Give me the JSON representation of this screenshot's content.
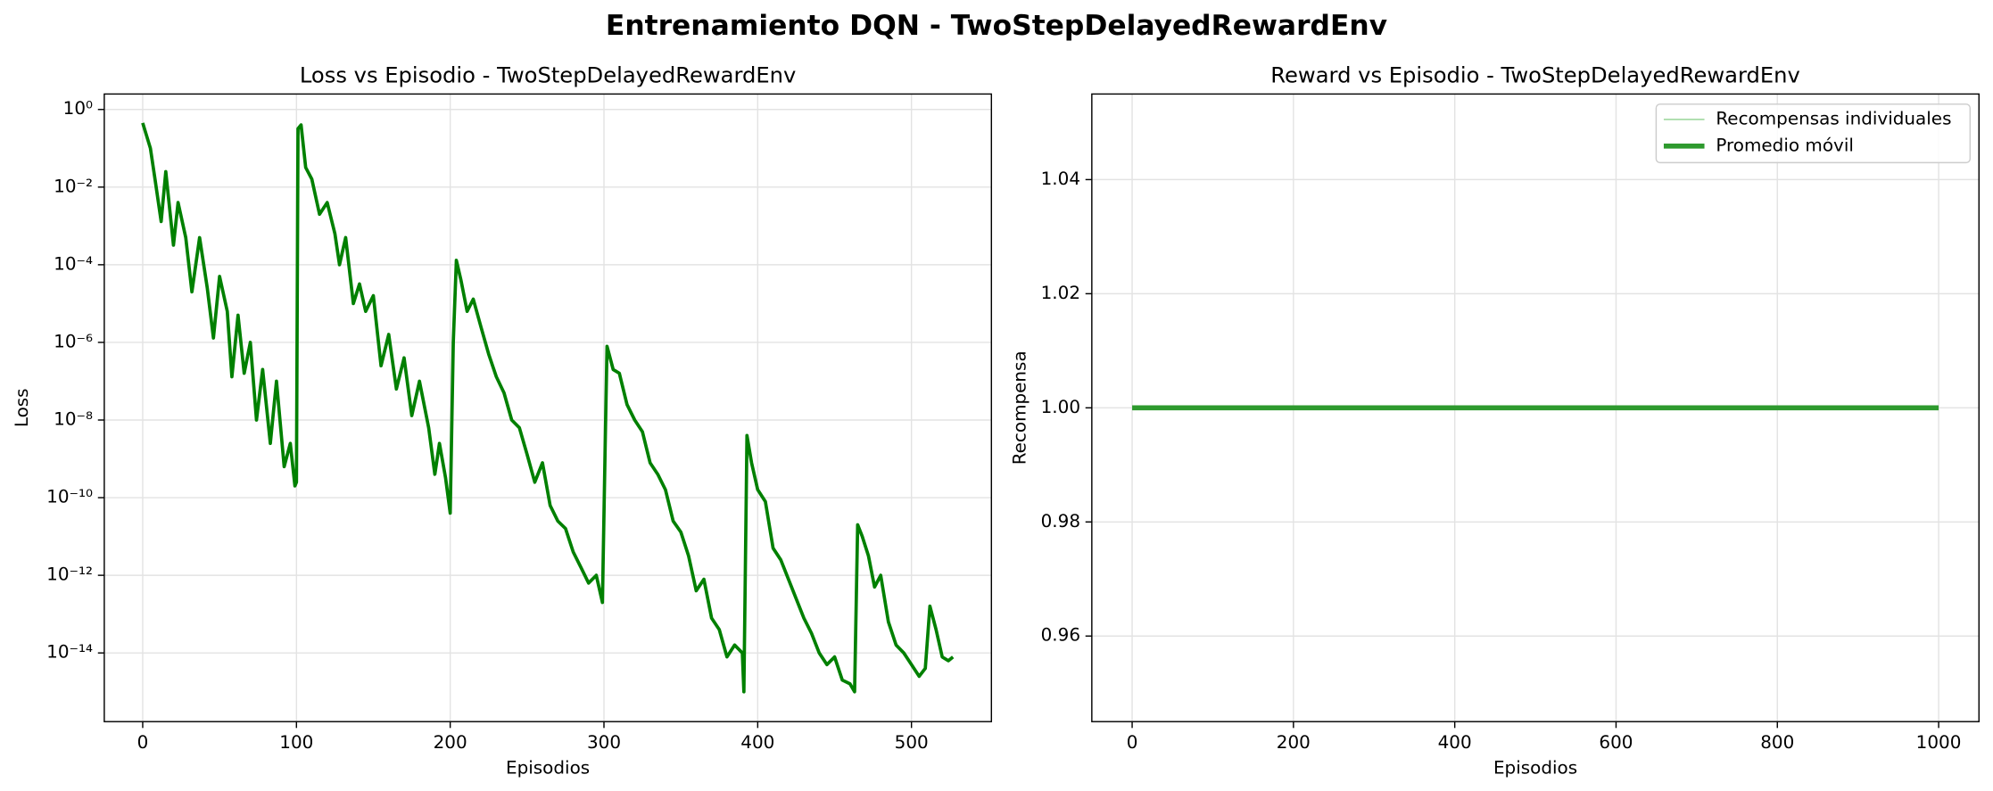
{
  "title": "Entrenamiento DQN - TwoStepDelayedRewardEnv",
  "chart_data": [
    {
      "type": "line",
      "title": "Loss vs Episodio - TwoStepDelayedRewardEnv",
      "xlabel": "Episodios",
      "ylabel": "Loss",
      "yscale": "log",
      "grid": true,
      "color": "#008000",
      "xlim": [
        -25,
        552
      ],
      "xticks": [
        0,
        100,
        200,
        300,
        400,
        500
      ],
      "ylim": [
        2.5,
        1.7e-16
      ],
      "yticks": [
        {
          "value": 1,
          "label": "10⁰"
        },
        {
          "value": 0.01,
          "label": "10⁻²"
        },
        {
          "value": 0.0001,
          "label": "10⁻⁴"
        },
        {
          "value": 1e-06,
          "label": "10⁻⁶"
        },
        {
          "value": 1e-08,
          "label": "10⁻⁸"
        },
        {
          "value": 1e-10,
          "label": "10⁻¹⁰"
        },
        {
          "value": 1e-12,
          "label": "10⁻¹²"
        },
        {
          "value": 1e-14,
          "label": "10⁻¹⁴"
        }
      ],
      "x": [
        0,
        5,
        8,
        12,
        15,
        20,
        23,
        28,
        32,
        37,
        42,
        46,
        50,
        55,
        58,
        62,
        66,
        70,
        74,
        78,
        83,
        87,
        92,
        96,
        99,
        100,
        101,
        103,
        106,
        110,
        115,
        120,
        125,
        128,
        132,
        137,
        141,
        145,
        150,
        155,
        160,
        165,
        170,
        175,
        180,
        186,
        190,
        193,
        197,
        200,
        202,
        204,
        207,
        211,
        215,
        220,
        225,
        230,
        235,
        240,
        245,
        250,
        255,
        260,
        265,
        270,
        275,
        280,
        285,
        290,
        295,
        299,
        301,
        302,
        306,
        310,
        315,
        320,
        325,
        330,
        335,
        340,
        345,
        350,
        355,
        360,
        365,
        370,
        375,
        380,
        385,
        390,
        391,
        393,
        396,
        400,
        405,
        410,
        415,
        420,
        425,
        430,
        435,
        440,
        445,
        450,
        455,
        460,
        463,
        465,
        468,
        472,
        476,
        480,
        485,
        490,
        495,
        500,
        505,
        509,
        512,
        516,
        520,
        524,
        527
      ],
      "values": [
        0.45,
        0.1,
        0.016,
        0.0013,
        0.025,
        0.00032,
        0.004,
        0.0005,
        2e-05,
        0.0005,
        2.5e-05,
        1.3e-06,
        5e-05,
        6.3e-06,
        1.3e-07,
        5e-06,
        1.6e-07,
        1e-06,
        1e-08,
        2e-07,
        2.5e-09,
        1e-07,
        6.3e-10,
        2.5e-09,
        2e-10,
        2.5e-10,
        0.32,
        0.4,
        0.032,
        0.016,
        0.002,
        0.004,
        0.00063,
        0.0001,
        0.0005,
        1e-05,
        3.2e-05,
        6.3e-06,
        1.6e-05,
        2.5e-07,
        1.6e-06,
        6.3e-08,
        4e-07,
        1.3e-08,
        1e-07,
        6.3e-09,
        4e-10,
        2.5e-09,
        3.2e-10,
        4e-11,
        1e-06,
        0.00013,
        4e-05,
        6.3e-06,
        1.3e-05,
        2.5e-06,
        5e-07,
        1.3e-07,
        5e-08,
        1e-08,
        6.3e-09,
        1.3e-09,
        2.5e-10,
        7.9e-10,
        6.3e-11,
        2.5e-11,
        1.6e-11,
        4e-12,
        1.6e-12,
        6.3e-13,
        1e-12,
        2e-13,
        6.3e-09,
        7.9e-07,
        2e-07,
        1.6e-07,
        2.5e-08,
        1e-08,
        5e-09,
        7.9e-10,
        4e-10,
        1.6e-10,
        2.5e-11,
        1.3e-11,
        3.2e-12,
        4e-13,
        7.9e-13,
        7.9e-14,
        4e-14,
        7.9e-15,
        1.6e-14,
        1e-14,
        1e-15,
        4e-09,
        7.9e-10,
        1.6e-10,
        7.9e-11,
        5e-12,
        2.5e-12,
        7.9e-13,
        2.5e-13,
        7.9e-14,
        3.2e-14,
        1e-14,
        5e-15,
        7.9e-15,
        2e-15,
        1.6e-15,
        1e-15,
        2e-11,
        1e-11,
        3.2e-12,
        5e-13,
        1e-12,
        6.3e-14,
        1.6e-14,
        1e-14,
        5e-15,
        2.5e-15,
        4e-15,
        1.6e-13,
        4e-14,
        7.9e-15,
        6.3e-15,
        7.9e-15
      ]
    },
    {
      "type": "line",
      "title": "Reward vs Episodio - TwoStepDelayedRewardEnv",
      "xlabel": "Episodios",
      "ylabel": "Recompensa",
      "grid": true,
      "legend": "upper right",
      "xlim": [
        -50,
        1050
      ],
      "xticks": [
        0,
        200,
        400,
        600,
        800,
        1000
      ],
      "ylim": [
        1.055,
        0.945
      ],
      "yticks": [
        0.96,
        0.98,
        {
          "value": 1,
          "label": "1.00"
        },
        1.02,
        1.04
      ],
      "series": [
        {
          "name": "Recompensas individuales",
          "color": "#9fd89f",
          "x": [
            0,
            1000
          ],
          "values": [
            1,
            1
          ]
        },
        {
          "name": "Promedio móvil",
          "color": "#2e9a2e",
          "x": [
            0,
            1000
          ],
          "values": [
            1,
            1
          ]
        }
      ]
    }
  ]
}
